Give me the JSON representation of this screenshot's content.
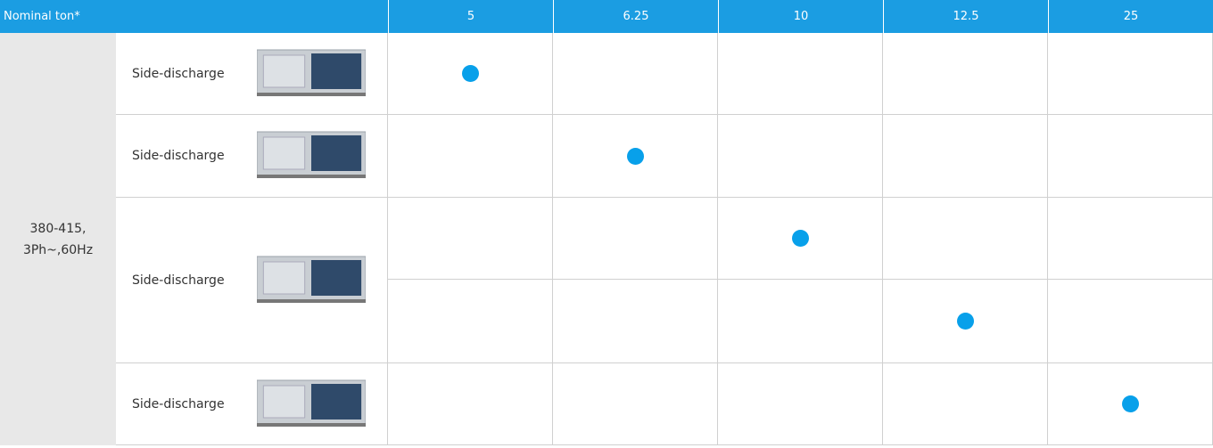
{
  "header": {
    "title": "Nominal ton*",
    "tons": [
      "5",
      "6.25",
      "10",
      "12.5",
      "25"
    ]
  },
  "power_supply": [
    "380-415,",
    "3Ph~,60Hz"
  ],
  "products": [
    {
      "label": "Side-discharge",
      "rows": [
        [
          true,
          false,
          false,
          false,
          false
        ]
      ]
    },
    {
      "label": "Side-discharge",
      "rows": [
        [
          false,
          true,
          false,
          false,
          false
        ]
      ]
    },
    {
      "label": "Side-discharge",
      "rows": [
        [
          false,
          false,
          true,
          false,
          false
        ],
        [
          false,
          false,
          false,
          true,
          false
        ]
      ]
    },
    {
      "label": "Side-discharge",
      "rows": [
        [
          false,
          false,
          false,
          false,
          true
        ]
      ]
    }
  ]
}
